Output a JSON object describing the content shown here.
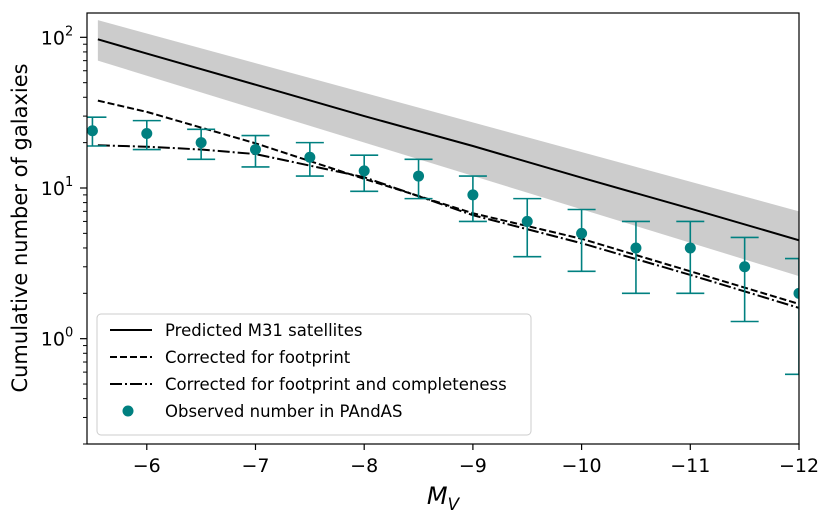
{
  "chart_data": {
    "type": "line",
    "title": "",
    "xlabel": "M_V",
    "xlabel_main": "M",
    "xlabel_sub": "V",
    "ylabel": "Cumulative number of galaxies",
    "xlim": [
      -5.45,
      -12.0
    ],
    "ylim": [
      0.2,
      145
    ],
    "yscale": "log",
    "x_ticks": [
      -6,
      -7,
      -8,
      -9,
      -10,
      -11,
      -12
    ],
    "x_tick_labels": [
      "−6",
      "−7",
      "−8",
      "−9",
      "−10",
      "−11",
      "−12"
    ],
    "y_ticks": [
      {
        "value": 1,
        "base": "10",
        "exp": "0"
      },
      {
        "value": 10,
        "base": "10",
        "exp": "1"
      },
      {
        "value": 100,
        "base": "10",
        "exp": "2"
      }
    ],
    "grid": false,
    "legend_position": "lower-left",
    "band": {
      "name": "Predicted M31 satellites uncertainty",
      "color": "#cccccc",
      "x": [
        -5.55,
        -12.0
      ],
      "upper": [
        130,
        7.0
      ],
      "lower": [
        70,
        2.6
      ]
    },
    "series": [
      {
        "name": "Predicted M31 satellites",
        "style": "solid",
        "color": "#000000",
        "x": [
          -5.55,
          -6,
          -7,
          -8,
          -9,
          -10,
          -11,
          -12
        ],
        "y": [
          97,
          78,
          48.5,
          30,
          19,
          11.7,
          7.3,
          4.5
        ]
      },
      {
        "name": "Corrected for footprint",
        "style": "dashed",
        "color": "#000000",
        "x": [
          -5.55,
          -6,
          -7,
          -8,
          -9,
          -10,
          -11,
          -12
        ],
        "y": [
          38,
          32,
          19.8,
          11.5,
          6.8,
          4.6,
          2.8,
          1.7
        ]
      },
      {
        "name": "Corrected for footprint and completeness",
        "style": "dashdot",
        "color": "#000000",
        "x": [
          -5.55,
          -6,
          -6.5,
          -7,
          -8,
          -9,
          -10,
          -11,
          -12
        ],
        "y": [
          19.2,
          18.8,
          18,
          16.8,
          11.8,
          6.6,
          4.3,
          2.65,
          1.6
        ]
      }
    ],
    "observed": {
      "name": "Observed number in PAndAS",
      "color": "#008080",
      "x": [
        -5.5,
        -6,
        -6.5,
        -7,
        -7.5,
        -8,
        -8.5,
        -9,
        -9.5,
        -10,
        -10.5,
        -11,
        -11.5,
        -12
      ],
      "y": [
        24,
        23,
        20,
        18,
        16,
        13,
        12,
        9,
        6,
        5,
        4,
        4,
        3,
        2
      ],
      "yerr_low": [
        19,
        18,
        15.5,
        13.8,
        12,
        9.5,
        8.5,
        6,
        3.5,
        2.8,
        2,
        2,
        1.3,
        0.58
      ],
      "yerr_high": [
        29.5,
        28,
        24.5,
        22.3,
        20,
        16.5,
        15.5,
        12,
        8.5,
        7.2,
        6,
        6,
        4.7,
        3.4
      ]
    },
    "legend": [
      {
        "label": "Predicted M31 satellites",
        "style": "solid"
      },
      {
        "label": "Corrected for footprint",
        "style": "dashed"
      },
      {
        "label": "Corrected for footprint and completeness",
        "style": "dashdot"
      },
      {
        "label": "Observed number in PAndAS",
        "style": "marker"
      }
    ]
  }
}
